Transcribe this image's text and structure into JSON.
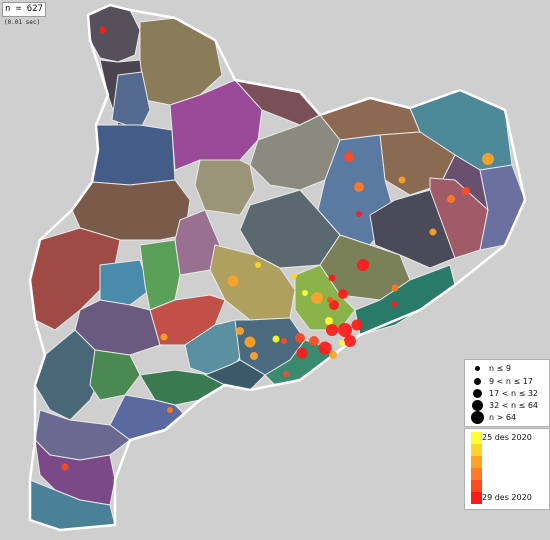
{
  "count_label": "n = 627",
  "time_label": "(0.01 sec)",
  "size_legend": {
    "items": [
      {
        "label": "n ≤ 9"
      },
      {
        "label": "9 < n ≤ 17"
      },
      {
        "label": "17 < n ≤ 32"
      },
      {
        "label": "32 < n ≤ 64"
      },
      {
        "label": "n > 64"
      }
    ]
  },
  "date_legend": {
    "start": "25 des 2020",
    "end": "29 des 2020",
    "colors": [
      "#ffff33",
      "#ffd52a",
      "#ffa326",
      "#ff7a22",
      "#ff4a1f",
      "#ff1a1a"
    ]
  },
  "colors": {
    "sea": "#cfcfcf",
    "land_border": "#e8e8e8",
    "outer_border": "#ffffff"
  }
}
